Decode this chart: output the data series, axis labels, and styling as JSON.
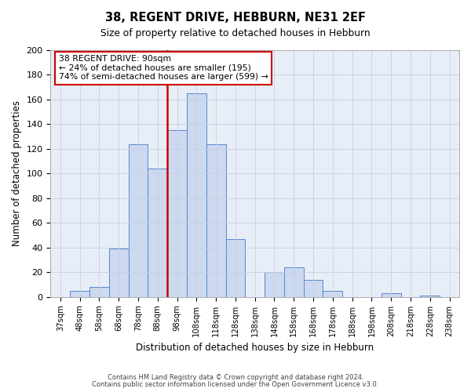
{
  "title": "38, REGENT DRIVE, HEBBURN, NE31 2EF",
  "subtitle": "Size of property relative to detached houses in Hebburn",
  "xlabel": "Distribution of detached houses by size in Hebburn",
  "ylabel": "Number of detached properties",
  "bin_labels": [
    "37sqm",
    "48sqm",
    "58sqm",
    "68sqm",
    "78sqm",
    "88sqm",
    "98sqm",
    "108sqm",
    "118sqm",
    "128sqm",
    "138sqm",
    "148sqm",
    "158sqm",
    "168sqm",
    "178sqm",
    "188sqm",
    "198sqm",
    "208sqm",
    "218sqm",
    "228sqm",
    "238sqm"
  ],
  "bar_heights": [
    0,
    5,
    8,
    39,
    124,
    104,
    135,
    165,
    124,
    47,
    0,
    20,
    24,
    14,
    5,
    0,
    0,
    3,
    0,
    1,
    0
  ],
  "bar_color": "#ccd9f0",
  "bar_edge_color": "#5588cc",
  "property_line_index": 5.5,
  "property_line_color": "#cc0000",
  "ylim": [
    0,
    200
  ],
  "yticks": [
    0,
    20,
    40,
    60,
    80,
    100,
    120,
    140,
    160,
    180,
    200
  ],
  "annotation_title": "38 REGENT DRIVE: 90sqm",
  "annotation_line1": "← 24% of detached houses are smaller (195)",
  "annotation_line2": "74% of semi-detached houses are larger (599) →",
  "annotation_box_facecolor": "#ffffff",
  "annotation_box_edgecolor": "#cc0000",
  "footer1": "Contains HM Land Registry data © Crown copyright and database right 2024.",
  "footer2": "Contains public sector information licensed under the Open Government Licence v3.0.",
  "background_color": "#ffffff",
  "axes_facecolor": "#e8eef8",
  "grid_color": "#c8d0dc"
}
